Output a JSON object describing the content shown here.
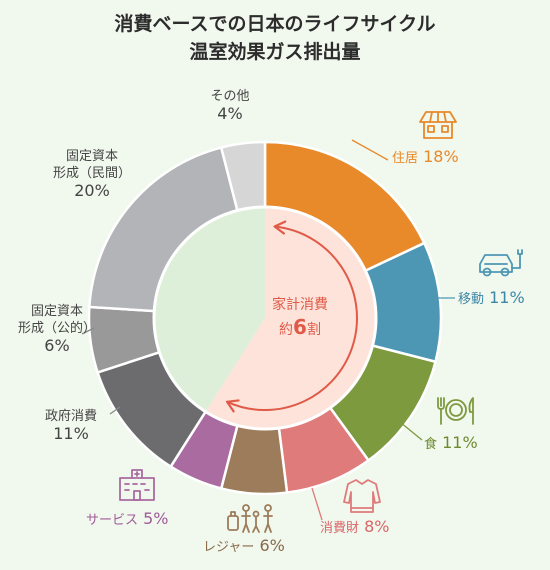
{
  "title_lines": [
    "消費ベースでの日本のライフサイクル",
    "温室効果ガス排出量"
  ],
  "center_label": {
    "line1": "家計消費",
    "line2_prefix": "約",
    "line2_value": "6",
    "line2_suffix": "割"
  },
  "chart_data": {
    "type": "pie",
    "title": "消費ベースでの日本のライフサイクル温室効果ガス排出量",
    "unit": "%",
    "slices": [
      {
        "label": "住居",
        "value": 18,
        "value_text": "18%",
        "color": "#e8892a",
        "group": "家計消費",
        "icon": "house-solar-icon"
      },
      {
        "label": "移動",
        "value": 11,
        "value_text": "11%",
        "color": "#4d97b4",
        "group": "家計消費",
        "icon": "car-icon"
      },
      {
        "label": "食",
        "value": 11,
        "value_text": "11%",
        "color": "#7e9a3f",
        "group": "家計消費",
        "icon": "dining-icon"
      },
      {
        "label": "消費財",
        "value": 8,
        "value_text": "8%",
        "color": "#df7b7b",
        "group": "家計消費",
        "icon": "sweater-icon"
      },
      {
        "label": "レジャー",
        "value": 6,
        "value_text": "6%",
        "color": "#9c7c5a",
        "group": "家計消費",
        "icon": "family-luggage-icon"
      },
      {
        "label": "サービス",
        "value": 5,
        "value_text": "5%",
        "color": "#a96ba0",
        "group": "家計消費",
        "icon": "building-icon"
      },
      {
        "label": "政府消費",
        "value": 11,
        "value_text": "11%",
        "color": "#6c6c6e",
        "group": "other"
      },
      {
        "label": "固定資本形成（公的）",
        "value": 6,
        "value_text": "6%",
        "color": "#999999",
        "group": "other"
      },
      {
        "label": "固定資本形成（民間）",
        "value": 20,
        "value_text": "20%",
        "color": "#b3b4b8",
        "group": "other"
      },
      {
        "label": "その他",
        "value": 4,
        "value_text": "4%",
        "color": "#d6d6d6",
        "group": "other"
      }
    ],
    "display_labels": [
      {
        "lines": [
          "住居"
        ],
        "pct": "18%",
        "color": "#e8892a"
      },
      {
        "lines": [
          "移動"
        ],
        "pct": "11%",
        "color": "#3d87a6"
      },
      {
        "lines": [
          "食"
        ],
        "pct": "11%",
        "color": "#6d8a30"
      },
      {
        "lines": [
          "消費財"
        ],
        "pct": "8%",
        "color": "#d9666a"
      },
      {
        "lines": [
          "レジャー"
        ],
        "pct": "6%",
        "color": "#8a6a48"
      },
      {
        "lines": [
          "サービス"
        ],
        "pct": "5%",
        "color": "#a05c98"
      },
      {
        "lines": [
          "政府消費"
        ],
        "pct": "11%",
        "color": "#444444"
      },
      {
        "lines": [
          "固定資本",
          "形成（公的）"
        ],
        "pct": "6%",
        "color": "#444444"
      },
      {
        "lines": [
          "固定資本",
          "形成（民間）"
        ],
        "pct": "20%",
        "color": "#444444"
      },
      {
        "lines": [
          "その他"
        ],
        "pct": "4%",
        "color": "#444444"
      }
    ],
    "colors": {
      "inner_household": "#fde3da",
      "inner_other": "#deefd9",
      "arrow": "#e05a48",
      "background": "#f1f8ee"
    }
  }
}
